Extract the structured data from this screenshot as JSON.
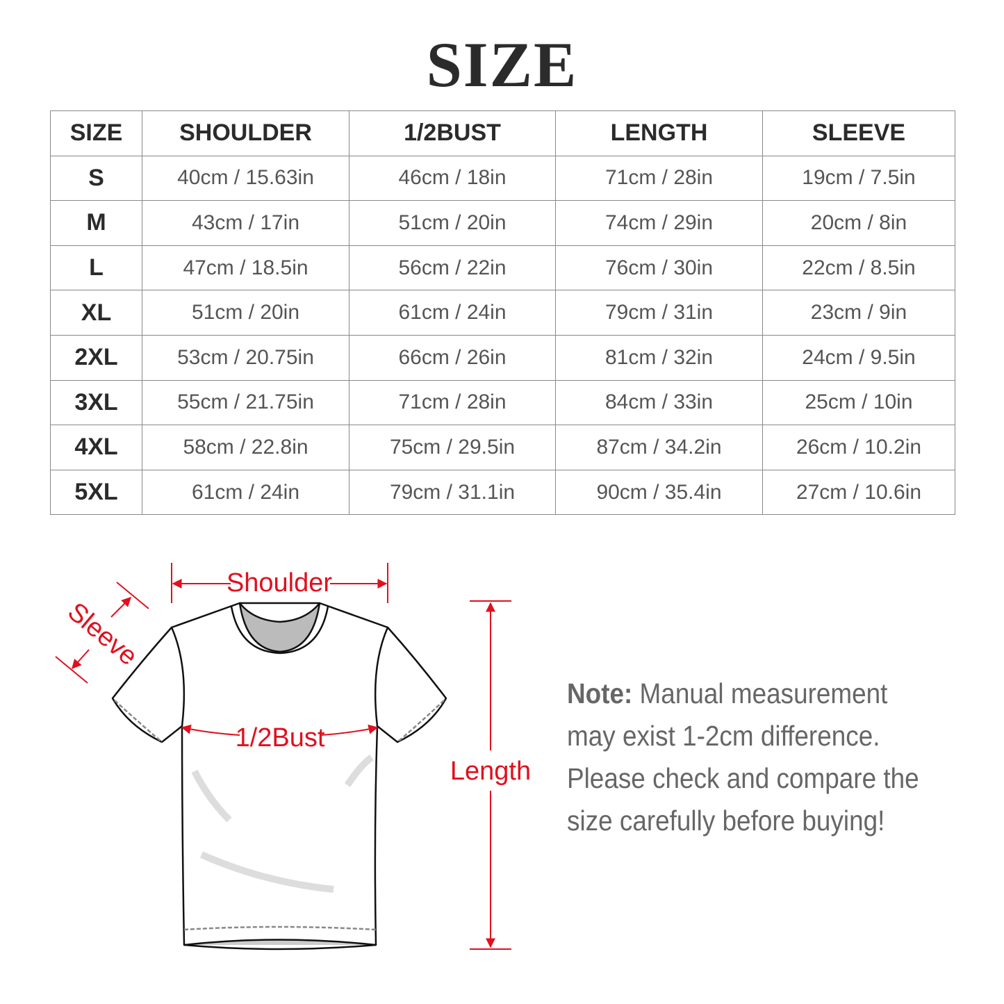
{
  "title": "SIZE",
  "table": {
    "headers": [
      "SIZE",
      "SHOULDER",
      "1/2BUST",
      "LENGTH",
      "SLEEVE"
    ],
    "rows": [
      [
        "S",
        "40cm / 15.63in",
        "46cm / 18in",
        "71cm / 28in",
        "19cm / 7.5in"
      ],
      [
        "M",
        "43cm / 17in",
        "51cm / 20in",
        "74cm / 29in",
        "20cm / 8in"
      ],
      [
        "L",
        "47cm / 18.5in",
        "56cm / 22in",
        "76cm / 30in",
        "22cm / 8.5in"
      ],
      [
        "XL",
        "51cm / 20in",
        "61cm / 24in",
        "79cm / 31in",
        "23cm / 9in"
      ],
      [
        "2XL",
        "53cm / 20.75in",
        "66cm / 26in",
        "81cm / 32in",
        "24cm / 9.5in"
      ],
      [
        "3XL",
        "55cm / 21.75in",
        "71cm / 28in",
        "84cm / 33in",
        "25cm / 10in"
      ],
      [
        "4XL",
        "58cm / 22.8in",
        "75cm / 29.5in",
        "87cm / 34.2in",
        "26cm / 10.2in"
      ],
      [
        "5XL",
        "61cm / 24in",
        "79cm / 31.1in",
        "90cm / 35.4in",
        "27cm / 10.6in"
      ]
    ]
  },
  "diagram": {
    "shoulder_label": "Shoulder",
    "sleeve_label": "Sleeve",
    "bust_label": "1/2Bust",
    "length_label": "Length",
    "accent_color": "#e0101e"
  },
  "note": {
    "label": "Note:",
    "text": "Manual measurement may exist 1-2cm difference. Please check and compare the size carefully before buying!"
  }
}
